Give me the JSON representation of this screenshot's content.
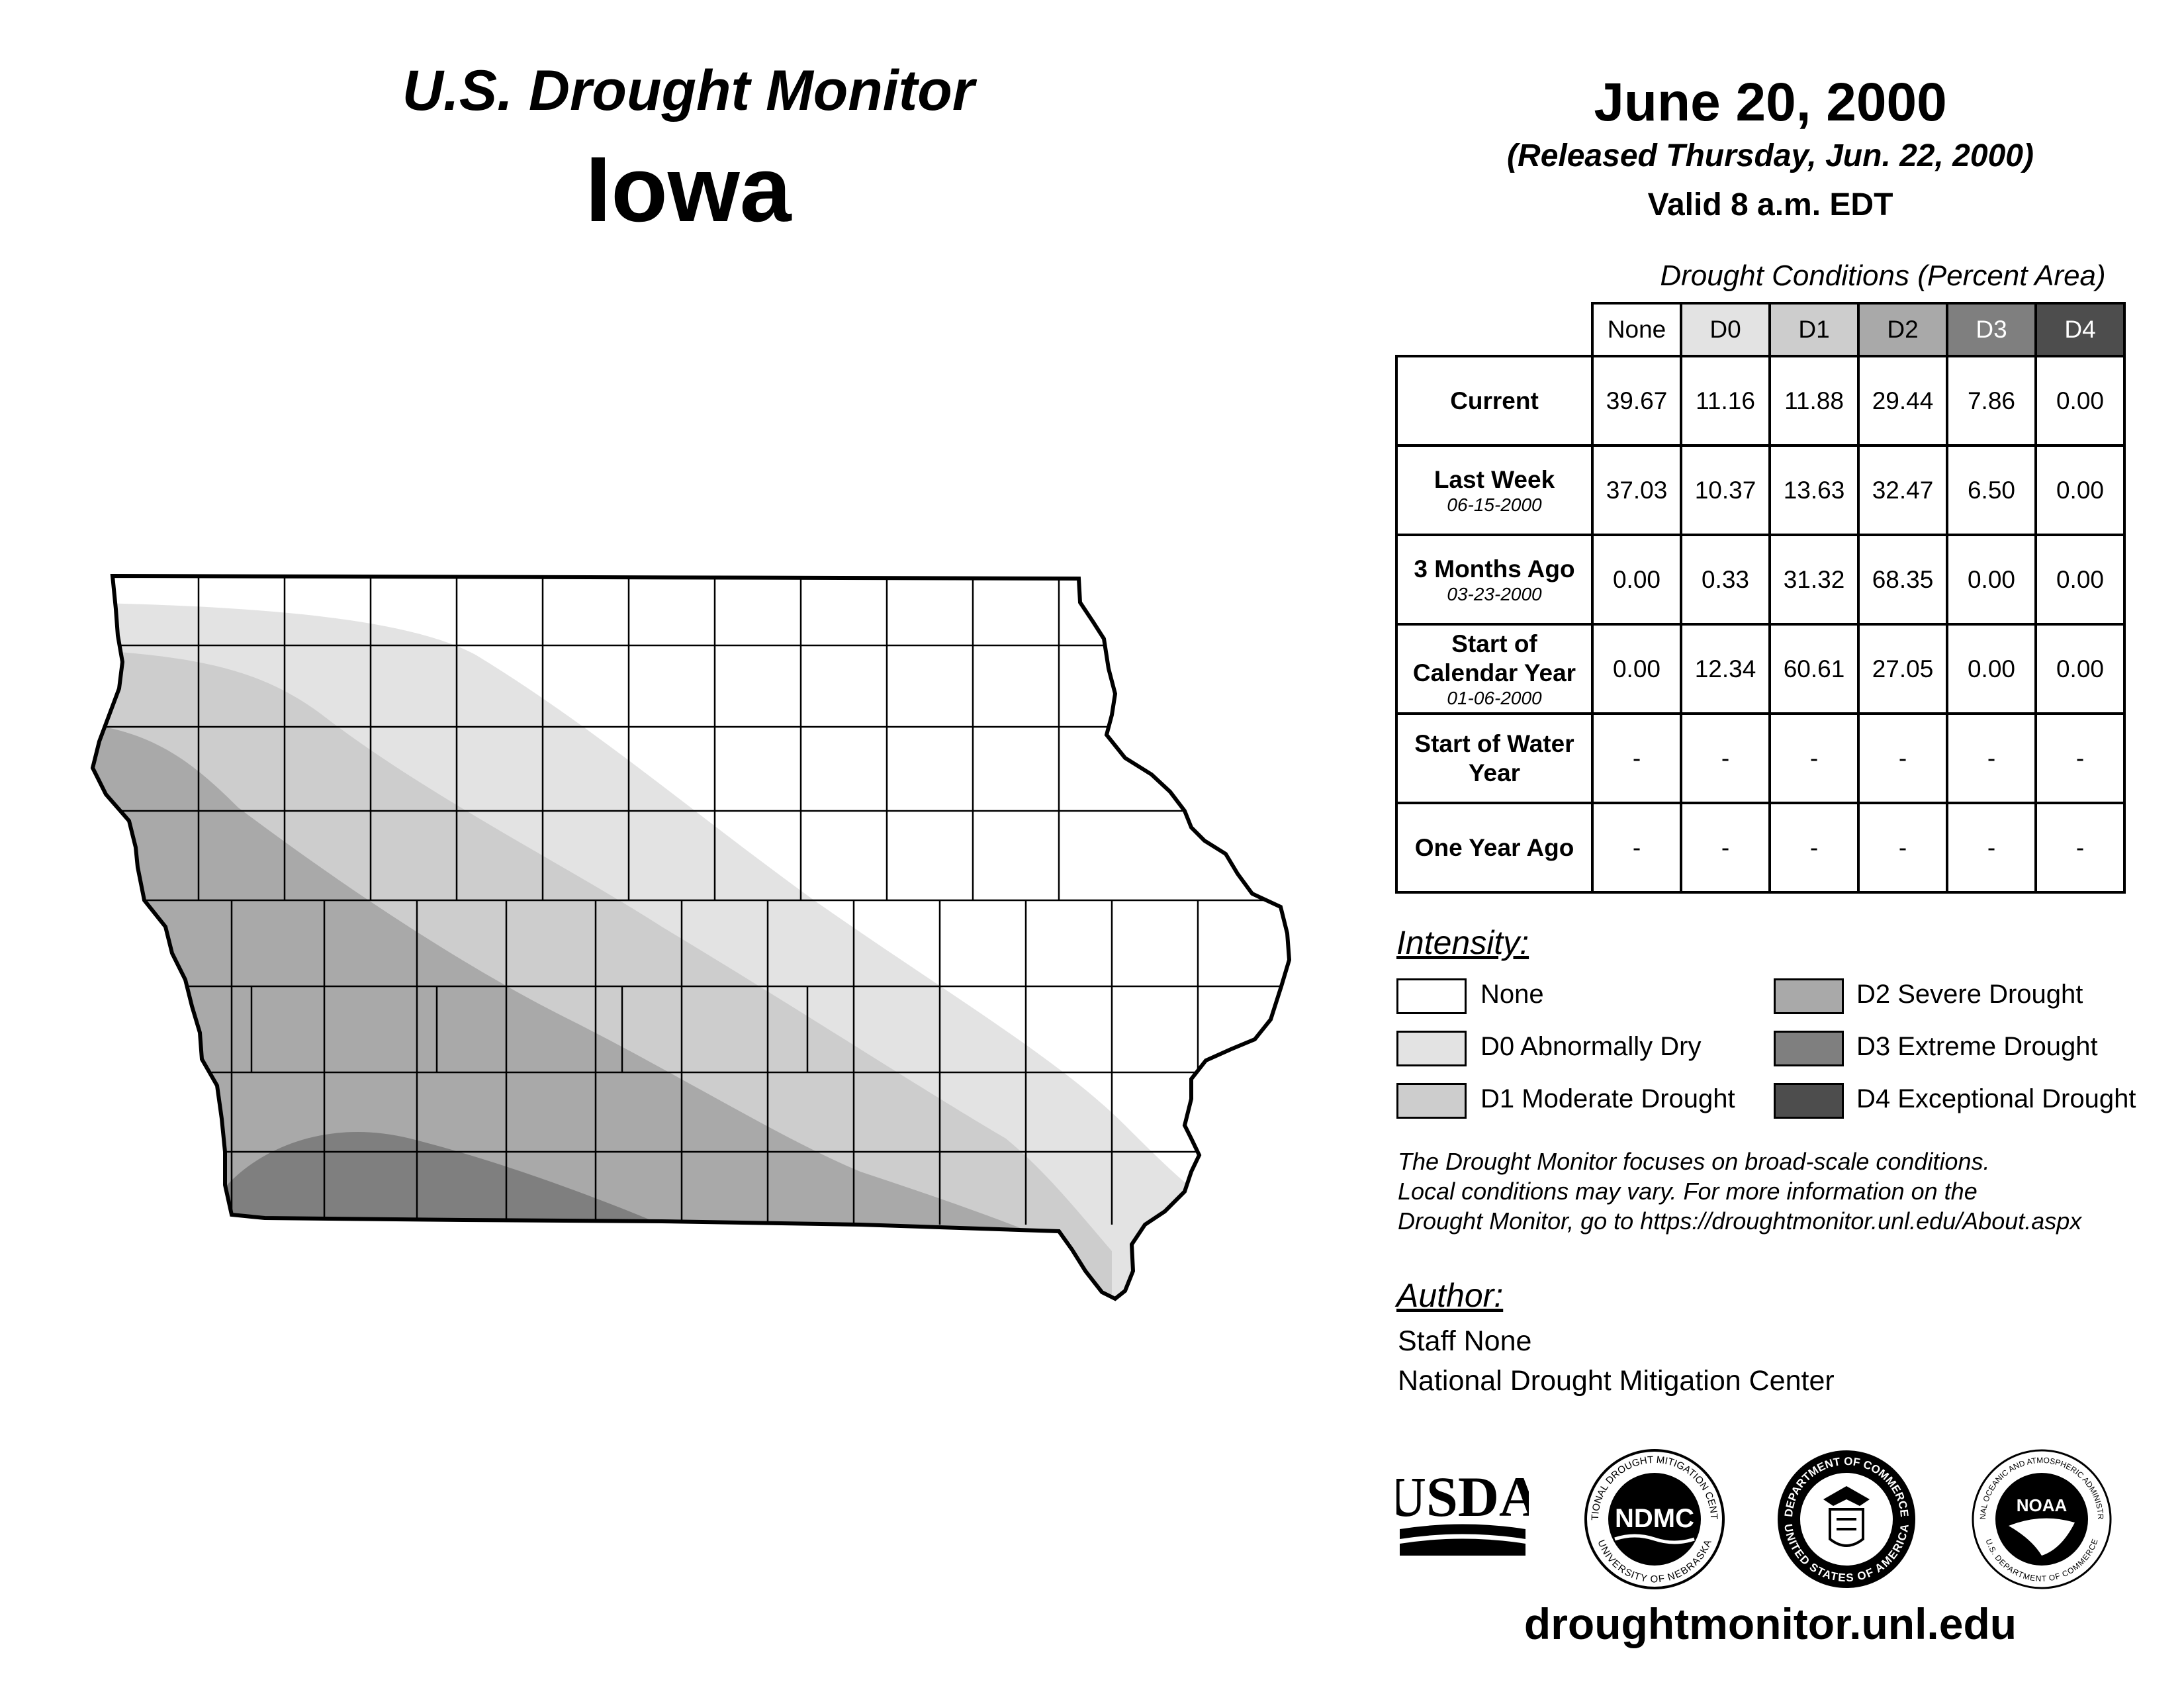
{
  "header": {
    "title": "U.S. Drought Monitor",
    "state": "Iowa",
    "date": "June 20, 2000",
    "released": "(Released Thursday, Jun. 22, 2000)",
    "valid": "Valid 8 a.m. EDT"
  },
  "conditions": {
    "title": "Drought Conditions (Percent Area)",
    "columns": [
      "None",
      "D0",
      "D1",
      "D2",
      "D3",
      "D4"
    ],
    "column_colors": [
      "#ffffff",
      "#e3e3e3",
      "#cdcdcd",
      "#a9a9a9",
      "#7f7f7f",
      "#4d4d4d"
    ],
    "rows": [
      {
        "label": "Current",
        "sub": "",
        "values": [
          "39.67",
          "11.16",
          "11.88",
          "29.44",
          "7.86",
          "0.00"
        ]
      },
      {
        "label": "Last Week",
        "sub": "06-15-2000",
        "values": [
          "37.03",
          "10.37",
          "13.63",
          "32.47",
          "6.50",
          "0.00"
        ]
      },
      {
        "label": "3 Months Ago",
        "sub": "03-23-2000",
        "values": [
          "0.00",
          "0.33",
          "31.32",
          "68.35",
          "0.00",
          "0.00"
        ]
      },
      {
        "label": "Start of Calendar Year",
        "sub": "01-06-2000",
        "values": [
          "0.00",
          "12.34",
          "60.61",
          "27.05",
          "0.00",
          "0.00"
        ]
      },
      {
        "label": "Start of Water Year",
        "sub": "",
        "values": [
          "-",
          "-",
          "-",
          "-",
          "-",
          "-"
        ]
      },
      {
        "label": "One Year Ago",
        "sub": "",
        "values": [
          "-",
          "-",
          "-",
          "-",
          "-",
          "-"
        ]
      }
    ]
  },
  "intensity": {
    "title": "Intensity:",
    "items": [
      {
        "label": "None",
        "color": "#ffffff"
      },
      {
        "label": "D0 Abnormally Dry",
        "color": "#e3e3e3"
      },
      {
        "label": "D1 Moderate Drought",
        "color": "#cdcdcd"
      },
      {
        "label": "D2 Severe Drought",
        "color": "#a9a9a9"
      },
      {
        "label": "D3 Extreme Drought",
        "color": "#7f7f7f"
      },
      {
        "label": "D4 Exceptional Drought",
        "color": "#4d4d4d"
      }
    ]
  },
  "note": {
    "line1": "The Drought Monitor focuses on broad-scale conditions.",
    "line2": "Local conditions may vary. For more information on the",
    "line3": "Drought Monitor, go to https://droughtmonitor.unl.edu/About.aspx"
  },
  "author": {
    "title": "Author:",
    "name": "Staff None",
    "org": "National Drought Mitigation Center"
  },
  "logos": {
    "usda": "USDA",
    "ndmc": "NDMC",
    "ndmc_ring": "NATIONAL DROUGHT MITIGATION CENTER",
    "ndmc_ring_bottom": "UNIVERSITY OF NEBRASKA",
    "commerce_ring": "DEPARTMENT OF COMMERCE",
    "commerce_ring_bottom": "UNITED STATES OF AMERICA",
    "noaa": "NOAA",
    "noaa_ring": "NATIONAL OCEANIC AND ATMOSPHERIC ADMINISTRATION",
    "noaa_ring_bottom": "U.S. DEPARTMENT OF COMMERCE"
  },
  "footer": {
    "url": "droughtmonitor.unl.edu"
  }
}
